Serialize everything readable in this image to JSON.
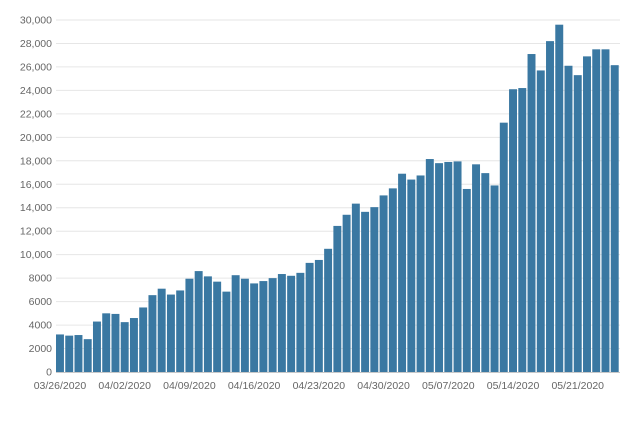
{
  "chart_data": {
    "type": "bar",
    "title": "",
    "xlabel": "",
    "ylabel": "",
    "ylim": [
      0,
      30000
    ],
    "y_ticks": [
      0,
      2000,
      4000,
      6000,
      8000,
      10000,
      12000,
      14000,
      16000,
      18000,
      20000,
      22000,
      24000,
      26000,
      28000,
      30000
    ],
    "y_tick_labels": [
      "0",
      "2000",
      "4000",
      "6000",
      "8000",
      "10,000",
      "12,000",
      "14,000",
      "16,000",
      "18,000",
      "20,000",
      "22,000",
      "24,000",
      "26,000",
      "28,000",
      "30,000"
    ],
    "x_tick_labels": [
      "03/26/2020",
      "04/02/2020",
      "04/09/2020",
      "04/16/2020",
      "04/23/2020",
      "04/30/2020",
      "05/07/2020",
      "05/14/2020",
      "05/21/2020"
    ],
    "categories": [
      "03/26/2020",
      "03/27/2020",
      "03/28/2020",
      "03/29/2020",
      "03/30/2020",
      "03/31/2020",
      "04/01/2020",
      "04/02/2020",
      "04/03/2020",
      "04/04/2020",
      "04/05/2020",
      "04/06/2020",
      "04/07/2020",
      "04/08/2020",
      "04/09/2020",
      "04/10/2020",
      "04/11/2020",
      "04/12/2020",
      "04/13/2020",
      "04/14/2020",
      "04/15/2020",
      "04/16/2020",
      "04/17/2020",
      "04/18/2020",
      "04/19/2020",
      "04/20/2020",
      "04/21/2020",
      "04/22/2020",
      "04/23/2020",
      "04/24/2020",
      "04/25/2020",
      "04/26/2020",
      "04/27/2020",
      "04/28/2020",
      "04/29/2020",
      "04/30/2020",
      "05/01/2020",
      "05/02/2020",
      "05/03/2020",
      "05/04/2020",
      "05/05/2020",
      "05/06/2020",
      "05/07/2020",
      "05/08/2020",
      "05/09/2020",
      "05/10/2020",
      "05/11/2020",
      "05/12/2020",
      "05/13/2020",
      "05/14/2020",
      "05/15/2020",
      "05/16/2020",
      "05/17/2020",
      "05/18/2020",
      "05/19/2020",
      "05/20/2020",
      "05/21/2020",
      "05/22/2020",
      "05/23/2020",
      "05/24/2020",
      "05/25/2020"
    ],
    "values": [
      3200,
      3100,
      3150,
      2800,
      4300,
      5000,
      4950,
      4250,
      4600,
      5500,
      6550,
      7100,
      6600,
      6950,
      7950,
      8600,
      8150,
      7700,
      6850,
      8250,
      7950,
      7550,
      7750,
      8000,
      8350,
      8200,
      8450,
      9300,
      9550,
      10500,
      12450,
      13400,
      14350,
      13650,
      14050,
      15050,
      15650,
      16900,
      16400,
      16750,
      18150,
      17800,
      17900,
      17950,
      15600,
      17700,
      16950,
      15900,
      21250,
      24100,
      24200,
      27100,
      25700,
      28200,
      29600,
      26100,
      25300,
      26900,
      27500,
      27500,
      26150
    ],
    "bar_color": "#3a78a2",
    "grid": true,
    "legend": "none"
  }
}
